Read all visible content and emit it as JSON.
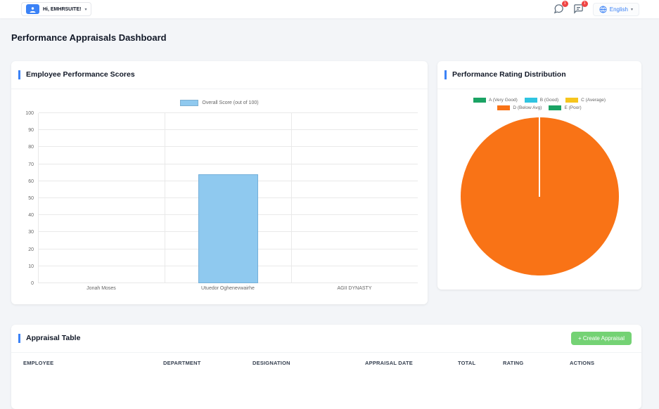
{
  "colors": {
    "accent": "#3b82f6",
    "badge": "#ef4444",
    "green": "#74d274"
  },
  "topbar": {
    "greeting": "Hi, EMHRSUITE!",
    "caret": "▾",
    "language": "English",
    "lang_caret": "▾",
    "chat_badge": "1",
    "message_badge": "1"
  },
  "page": {
    "title": "Performance Appraisals Dashboard"
  },
  "cards": {
    "bar_card": {
      "title": "Employee Performance Scores"
    },
    "pie_card": {
      "title": "Performance Rating Distribution"
    },
    "table_card": {
      "title": "Appraisal Table",
      "create_button": "+ Create Appraisal"
    }
  },
  "chart_data": [
    {
      "type": "bar",
      "title": "Employee Performance Scores",
      "legend": [
        "Overall Score (out of 100)"
      ],
      "categories": [
        "Jonah Moses",
        "Utuedor Oghenevwairhe",
        "AGII DYNASTY"
      ],
      "values": [
        0,
        64,
        0
      ],
      "ylim": [
        0,
        100
      ],
      "ytick_step": 10,
      "bar_color": "#8fc9ef",
      "grid": true,
      "legend_position": "top"
    },
    {
      "type": "pie",
      "title": "Performance Rating Distribution",
      "labels": [
        "A (Very Good)",
        "B (Good)",
        "C (Average)",
        "D (Below Avg)",
        "E (Poor)"
      ],
      "values": [
        0,
        0,
        0,
        100,
        0
      ],
      "colors": [
        "#1ba364",
        "#2fc4e0",
        "#f6c51d",
        "#f97316",
        "#1ba364"
      ],
      "legend_position": "top"
    }
  ],
  "table": {
    "headers": [
      "EMPLOYEE",
      "DEPARTMENT",
      "DESIGNATION",
      "APPRAISAL DATE",
      "TOTAL",
      "RATING",
      "ACTIONS"
    ]
  }
}
